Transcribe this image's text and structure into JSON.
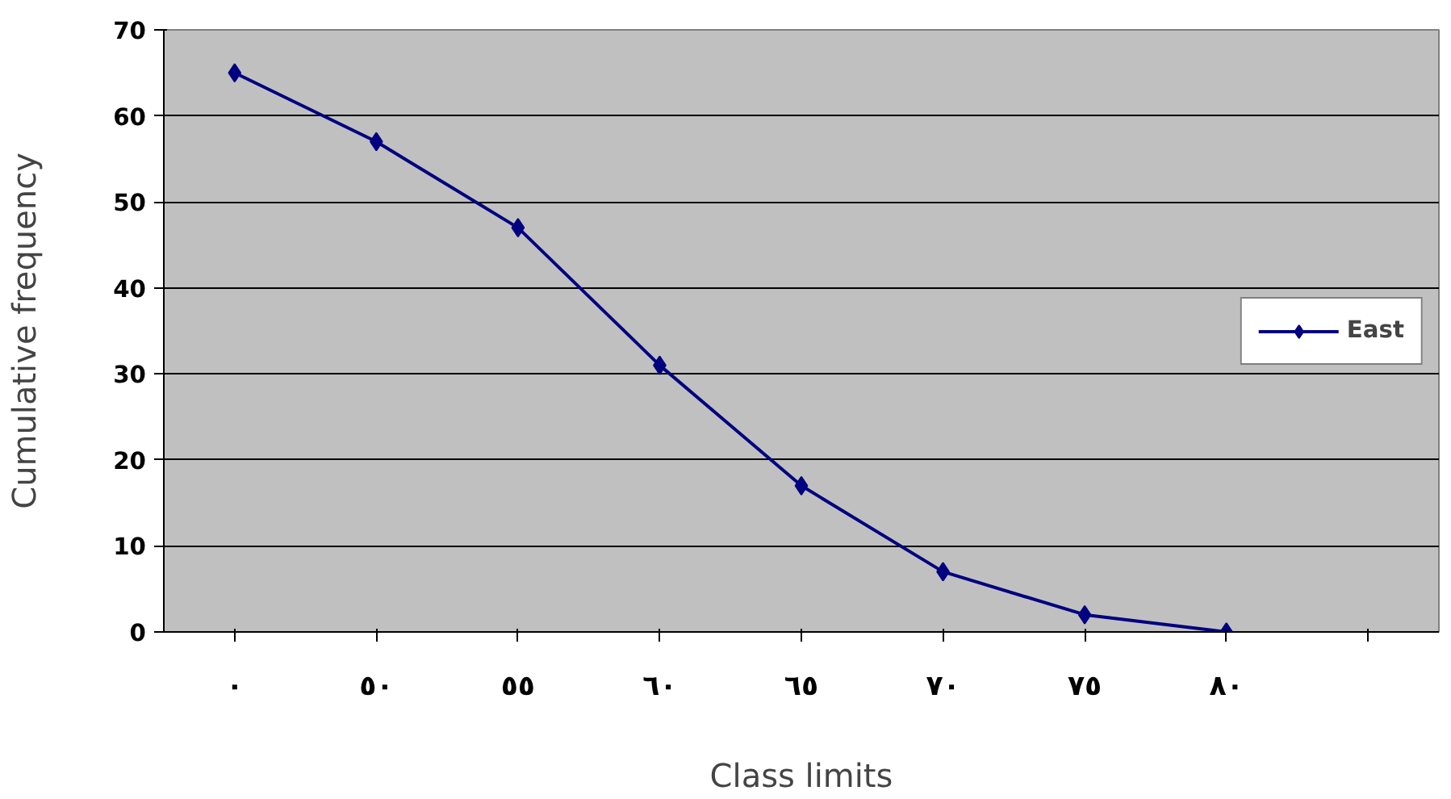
{
  "chart_data": {
    "type": "line",
    "xlabel": "Class limits",
    "ylabel": "Cumulative frequency",
    "categories": [
      "٠",
      "٥٠",
      "٥٥",
      "٦٠",
      "٦٥",
      "٧٠",
      "٧٥",
      "٨٠",
      null
    ],
    "series": [
      {
        "name": "East",
        "color": "#000080",
        "values": [
          65,
          57,
          47,
          31,
          17,
          7,
          2,
          0,
          null
        ]
      }
    ],
    "marker": "diamond",
    "ylim": [
      0,
      70
    ],
    "yticks": [
      0,
      10,
      20,
      30,
      40,
      50,
      60,
      70
    ],
    "grid": "y",
    "legend": "right",
    "line_style": "solid"
  }
}
